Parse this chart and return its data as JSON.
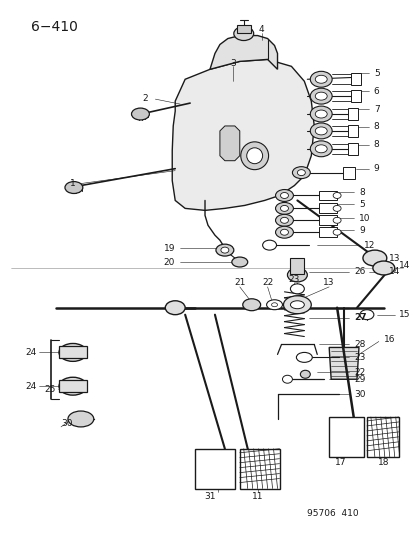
{
  "title": "6−410",
  "subtitle": "95706  410",
  "background_color": "#ffffff",
  "line_color": "#1a1a1a",
  "text_color": "#1a1a1a",
  "figsize": [
    4.14,
    5.33
  ],
  "dpi": 100
}
